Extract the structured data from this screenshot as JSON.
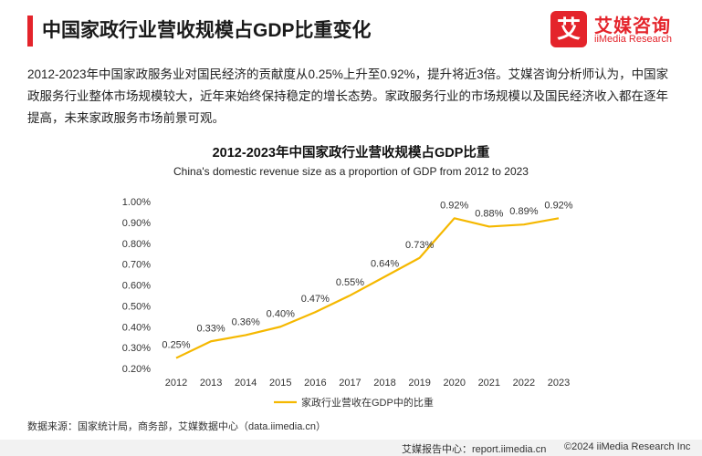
{
  "header": {
    "title": "中国家政行业营收规模占GDP比重变化",
    "brand_logo_char": "艾",
    "brand_name": "艾媒咨询",
    "brand_name_en": "iiMedia Research"
  },
  "intro": {
    "text": "2012-2023年中国家政服务业对国民经济的贡献度从0.25%上升至0.92%，提升将近3倍。艾媒咨询分析师认为，中国家政服务行业整体市场规模较大，近年来始终保持稳定的增长态势。家政服务行业的市场规模以及国民经济收入都在逐年提高，未来家政服务市场前景可观。"
  },
  "chart_data": {
    "type": "line",
    "title": "2012-2023年中国家政行业营收规模占GDP比重",
    "subtitle": "China's domestic revenue size as a proportion of GDP from 2012 to 2023",
    "categories": [
      "2012",
      "2013",
      "2014",
      "2015",
      "2016",
      "2017",
      "2018",
      "2019",
      "2020",
      "2021",
      "2022",
      "2023"
    ],
    "series": [
      {
        "name": "家政行业营收在GDP中的比重",
        "values": [
          0.25,
          0.33,
          0.36,
          0.4,
          0.47,
          0.55,
          0.64,
          0.73,
          0.92,
          0.88,
          0.89,
          0.92
        ],
        "labels": [
          "0.25%",
          "0.33%",
          "0.36%",
          "0.40%",
          "0.47%",
          "0.55%",
          "0.64%",
          "0.73%",
          "0.92%",
          "0.88%",
          "0.89%",
          "0.92%"
        ]
      }
    ],
    "ylim": [
      0.2,
      1.0
    ],
    "yticks": [
      "0.20%",
      "0.30%",
      "0.40%",
      "0.50%",
      "0.60%",
      "0.70%",
      "0.80%",
      "0.90%",
      "1.00%"
    ],
    "xlabel": "",
    "ylabel": "",
    "legend_position": "bottom",
    "grid": false,
    "line_color": "#f5b800"
  },
  "footer": {
    "source": "数据来源：国家统计局，商务部，艾媒数据中心（data.iimedia.cn）",
    "report": "艾媒报告中心：report.iimedia.cn",
    "copyright": "©2024  iiMedia Research  Inc"
  }
}
